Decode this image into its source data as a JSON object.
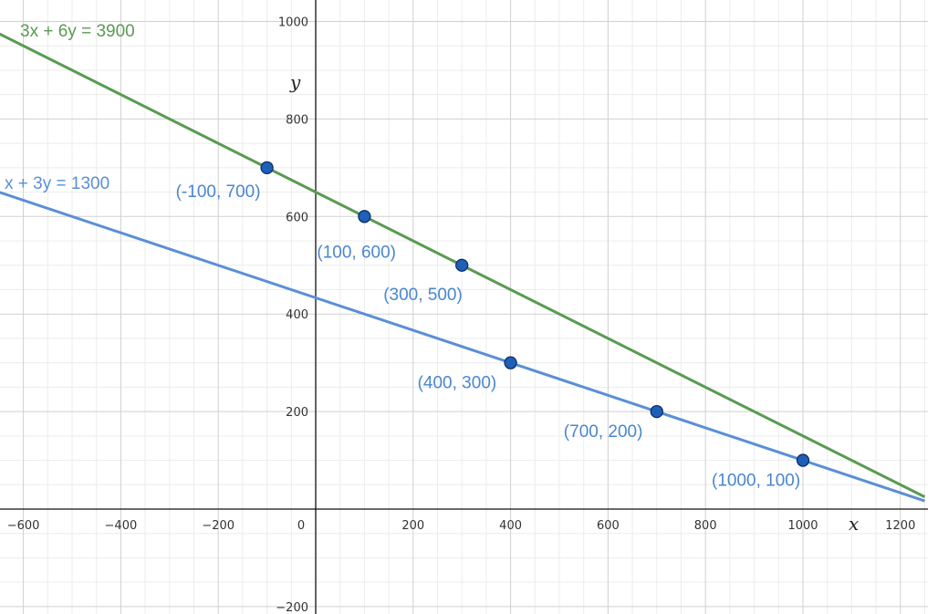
{
  "chart_data": {
    "type": "line",
    "xlim": [
      -650,
      1250
    ],
    "ylim": [
      -210,
      1040
    ],
    "xticks": [
      -600,
      -400,
      -200,
      0,
      200,
      400,
      600,
      800,
      1000,
      1200
    ],
    "xtick_labels": [
      "−600",
      "−400",
      "−200",
      "0",
      "200",
      "400",
      "600",
      "800",
      "1000",
      "1200"
    ],
    "yticks": [
      -200,
      200,
      400,
      600,
      800,
      1000
    ],
    "ytick_labels": [
      "−200",
      "200",
      "400",
      "600",
      "800",
      "1000"
    ],
    "xlabel": "x",
    "ylabel": "y",
    "grid": true,
    "series": [
      {
        "name": "3x + 6y = 3900",
        "color": "#5a9a52",
        "x": [
          -650,
          1250
        ],
        "y": [
          975,
          25
        ]
      },
      {
        "name": "x + 3y = 1300",
        "color": "#5a8fd6",
        "x": [
          -650,
          1250
        ],
        "y": [
          650,
          16.67
        ]
      }
    ],
    "points": [
      {
        "x": -100,
        "y": 700,
        "label": "(-100, 700)"
      },
      {
        "x": 100,
        "y": 600,
        "label": "(100, 600)"
      },
      {
        "x": 300,
        "y": 500,
        "label": "(300, 500)"
      },
      {
        "x": 400,
        "y": 300,
        "label": "(400, 300)"
      },
      {
        "x": 700,
        "y": 200,
        "label": "(700, 200)"
      },
      {
        "x": 1000,
        "y": 100,
        "label": "(1000, 100)"
      }
    ],
    "point_color": "#1f5fb8",
    "label_color": "#4a86cf"
  }
}
